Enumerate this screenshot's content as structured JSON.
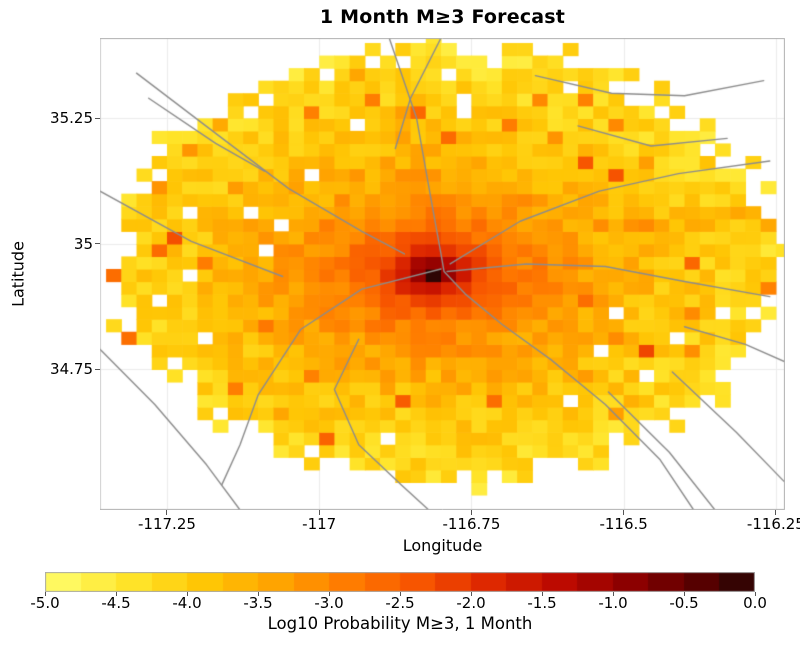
{
  "chart_data": {
    "type": "heatmap",
    "title": "1 Month M≥3 Forecast",
    "xlabel": "Longitude",
    "ylabel": "Latitude",
    "xlim": [
      -117.36,
      -116.235
    ],
    "ylim": [
      34.47,
      35.41
    ],
    "xticks": {
      "values": [
        -117.25,
        -117,
        -116.75,
        -116.5,
        -116.25
      ],
      "labels": [
        "-117.25",
        "-117",
        "-116.75",
        "-116.5",
        "-116.25"
      ]
    },
    "yticks": {
      "values": [
        35.25,
        35,
        34.75
      ],
      "labels": [
        "35.25",
        "35",
        "34.75"
      ]
    },
    "grid": true,
    "grid_color": "#ececec",
    "frame_color": "#b0b0b0",
    "cell_size_deg": 0.025,
    "value_range": [
      -5,
      0
    ],
    "heat_model": {
      "description": "Log10 probability field over an irregular elliptical forecast region; bright-yellow background (~-4.5 to -5) with concentric orange/red rings rising to a near-black peak at the hotspot, plus orange ridges trending north, east and southeast along faults, ragged noisy boundary and scattered empty cells.",
      "domain_center": [
        -116.785,
        34.96
      ],
      "domain_radii": [
        0.54,
        0.43
      ],
      "edge_base": 0.93,
      "edge_jitter": 0.14,
      "hole_prob": 0.035,
      "hotspot": [
        -116.815,
        34.945
      ],
      "peak_value": -0.2,
      "anisotropy": 0.7,
      "falloff": [
        [
          0,
          -0.25
        ],
        [
          0.025,
          -1.1
        ],
        [
          0.05,
          -1.8
        ],
        [
          0.09,
          -2.5
        ],
        [
          0.15,
          -3.0
        ],
        [
          0.25,
          -3.5
        ],
        [
          0.4,
          -4.0
        ],
        [
          0.6,
          -4.4
        ],
        [
          1.2,
          -4.8
        ]
      ],
      "ridges": [
        {
          "a": [
            -116.825,
            35.0
          ],
          "b": [
            -116.87,
            35.38
          ],
          "width": 0.05,
          "v0": -2.9,
          "v1": -3.9
        },
        {
          "a": [
            -116.7,
            35.01
          ],
          "b": [
            -116.3,
            35.06
          ],
          "width": 0.05,
          "v0": -3.0,
          "v1": -3.8
        },
        {
          "a": [
            -116.74,
            34.88
          ],
          "b": [
            -116.47,
            34.67
          ],
          "width": 0.05,
          "v0": -3.0,
          "v1": -4.0
        },
        {
          "a": [
            -116.88,
            34.955
          ],
          "b": [
            -117.03,
            34.99
          ],
          "width": 0.04,
          "v0": -2.9,
          "v1": -3.9
        }
      ],
      "noise_amplitude": 0.7,
      "outlier_prob": 0.05,
      "seed": 20190705
    },
    "colormap": {
      "stops": [
        [
          -5.0,
          [
            255,
            249,
            96
          ]
        ],
        [
          -4.5,
          [
            255,
            227,
            40
          ]
        ],
        [
          -4.0,
          [
            255,
            198,
            5
          ]
        ],
        [
          -3.5,
          [
            255,
            164,
            0
          ]
        ],
        [
          -3.0,
          [
            255,
            124,
            0
          ]
        ],
        [
          -2.5,
          [
            247,
            85,
            0
          ]
        ],
        [
          -2.0,
          [
            222,
            40,
            0
          ]
        ],
        [
          -1.5,
          [
            188,
            10,
            0
          ]
        ],
        [
          -1.0,
          [
            140,
            0,
            0
          ]
        ],
        [
          -0.5,
          [
            86,
            0,
            0
          ]
        ],
        [
          0.0,
          [
            20,
            8,
            6
          ]
        ]
      ]
    },
    "colorbar": {
      "ticks": [
        "-5.0",
        "-4.5",
        "-4.0",
        "-3.5",
        "-3.0",
        "-2.5",
        "-2.0",
        "-1.5",
        "-1.0",
        "-0.5",
        "0.0"
      ],
      "label": "Log10 Probability M≥3, 1 Month",
      "block_step": 0.25
    },
    "fault_color": "#8c8c8c",
    "fault_lines": [
      [
        [
          -116.885,
          35.41
        ],
        [
          -116.84,
          35.25
        ],
        [
          -116.815,
          35.08
        ],
        [
          -116.8,
          34.98
        ],
        [
          -116.795,
          34.945
        ],
        [
          -116.76,
          34.9
        ],
        [
          -116.7,
          34.84
        ],
        [
          -116.62,
          34.77
        ],
        [
          -116.53,
          34.68
        ],
        [
          -116.44,
          34.57
        ],
        [
          -116.385,
          34.47
        ]
      ],
      [
        [
          -116.8,
          34.95
        ],
        [
          -116.93,
          34.91
        ],
        [
          -117.03,
          34.83
        ],
        [
          -117.1,
          34.7
        ],
        [
          -117.13,
          34.6
        ],
        [
          -117.16,
          34.52
        ]
      ],
      [
        [
          -116.79,
          34.945
        ],
        [
          -116.66,
          34.96
        ],
        [
          -116.53,
          34.955
        ],
        [
          -116.4,
          34.925
        ],
        [
          -116.26,
          34.895
        ]
      ],
      [
        [
          -116.785,
          34.96
        ],
        [
          -116.67,
          35.045
        ],
        [
          -116.54,
          35.105
        ],
        [
          -116.41,
          35.14
        ],
        [
          -116.26,
          35.165
        ]
      ],
      [
        [
          -117.3,
          35.34
        ],
        [
          -117.17,
          35.22
        ],
        [
          -117.05,
          35.11
        ],
        [
          -116.93,
          35.025
        ],
        [
          -116.86,
          34.98
        ]
      ],
      [
        [
          -117.36,
          35.105
        ],
        [
          -117.21,
          35.005
        ],
        [
          -117.06,
          34.935
        ]
      ],
      [
        [
          -116.8,
          35.41
        ],
        [
          -116.85,
          35.29
        ],
        [
          -116.875,
          35.19
        ]
      ],
      [
        [
          -116.645,
          35.335
        ],
        [
          -116.52,
          35.3
        ],
        [
          -116.4,
          35.295
        ],
        [
          -116.27,
          35.325
        ]
      ],
      [
        [
          -116.575,
          35.235
        ],
        [
          -116.455,
          35.195
        ],
        [
          -116.33,
          35.21
        ]
      ],
      [
        [
          -117.36,
          34.79
        ],
        [
          -117.27,
          34.68
        ],
        [
          -117.185,
          34.56
        ],
        [
          -117.13,
          34.47
        ]
      ],
      [
        [
          -116.935,
          34.81
        ],
        [
          -116.975,
          34.71
        ],
        [
          -116.935,
          34.6
        ],
        [
          -116.865,
          34.52
        ],
        [
          -116.82,
          34.47
        ]
      ],
      [
        [
          -116.525,
          34.705
        ],
        [
          -116.425,
          34.585
        ],
        [
          -116.35,
          34.47
        ]
      ],
      [
        [
          -116.42,
          34.745
        ],
        [
          -116.315,
          34.625
        ],
        [
          -116.235,
          34.525
        ]
      ],
      [
        [
          -116.4,
          34.835
        ],
        [
          -116.3,
          34.8
        ],
        [
          -116.235,
          34.765
        ]
      ],
      [
        [
          -117.28,
          35.29
        ],
        [
          -117.17,
          35.2
        ],
        [
          -117.09,
          35.145
        ]
      ]
    ]
  }
}
